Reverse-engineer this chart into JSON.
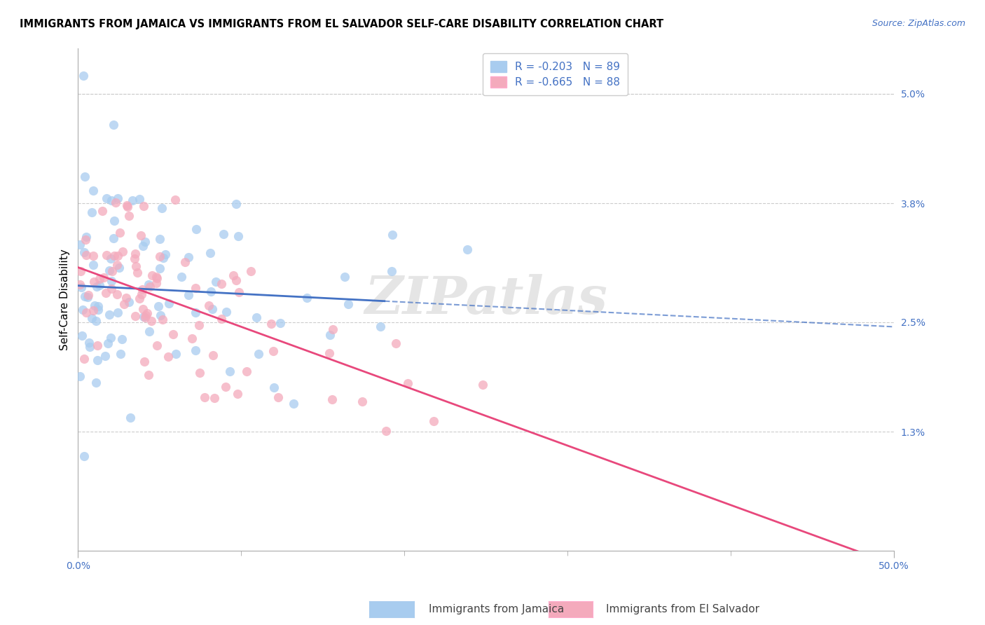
{
  "title": "IMMIGRANTS FROM JAMAICA VS IMMIGRANTS FROM EL SALVADOR SELF-CARE DISABILITY CORRELATION CHART",
  "source": "Source: ZipAtlas.com",
  "ylabel": "Self-Care Disability",
  "right_yticks": [
    "5.0%",
    "3.8%",
    "2.5%",
    "1.3%"
  ],
  "right_ytick_vals": [
    0.05,
    0.038,
    0.025,
    0.013
  ],
  "legend_blue_r": -0.203,
  "legend_blue_n": 89,
  "legend_pink_r": -0.665,
  "legend_pink_n": 88,
  "xlim": [
    0.0,
    0.5
  ],
  "ylim": [
    0.0,
    0.055
  ],
  "blue_color": "#A8CCEF",
  "pink_color": "#F4AABC",
  "blue_line_color": "#4472C4",
  "pink_line_color": "#E8487C",
  "watermark": "ZIPatlas"
}
